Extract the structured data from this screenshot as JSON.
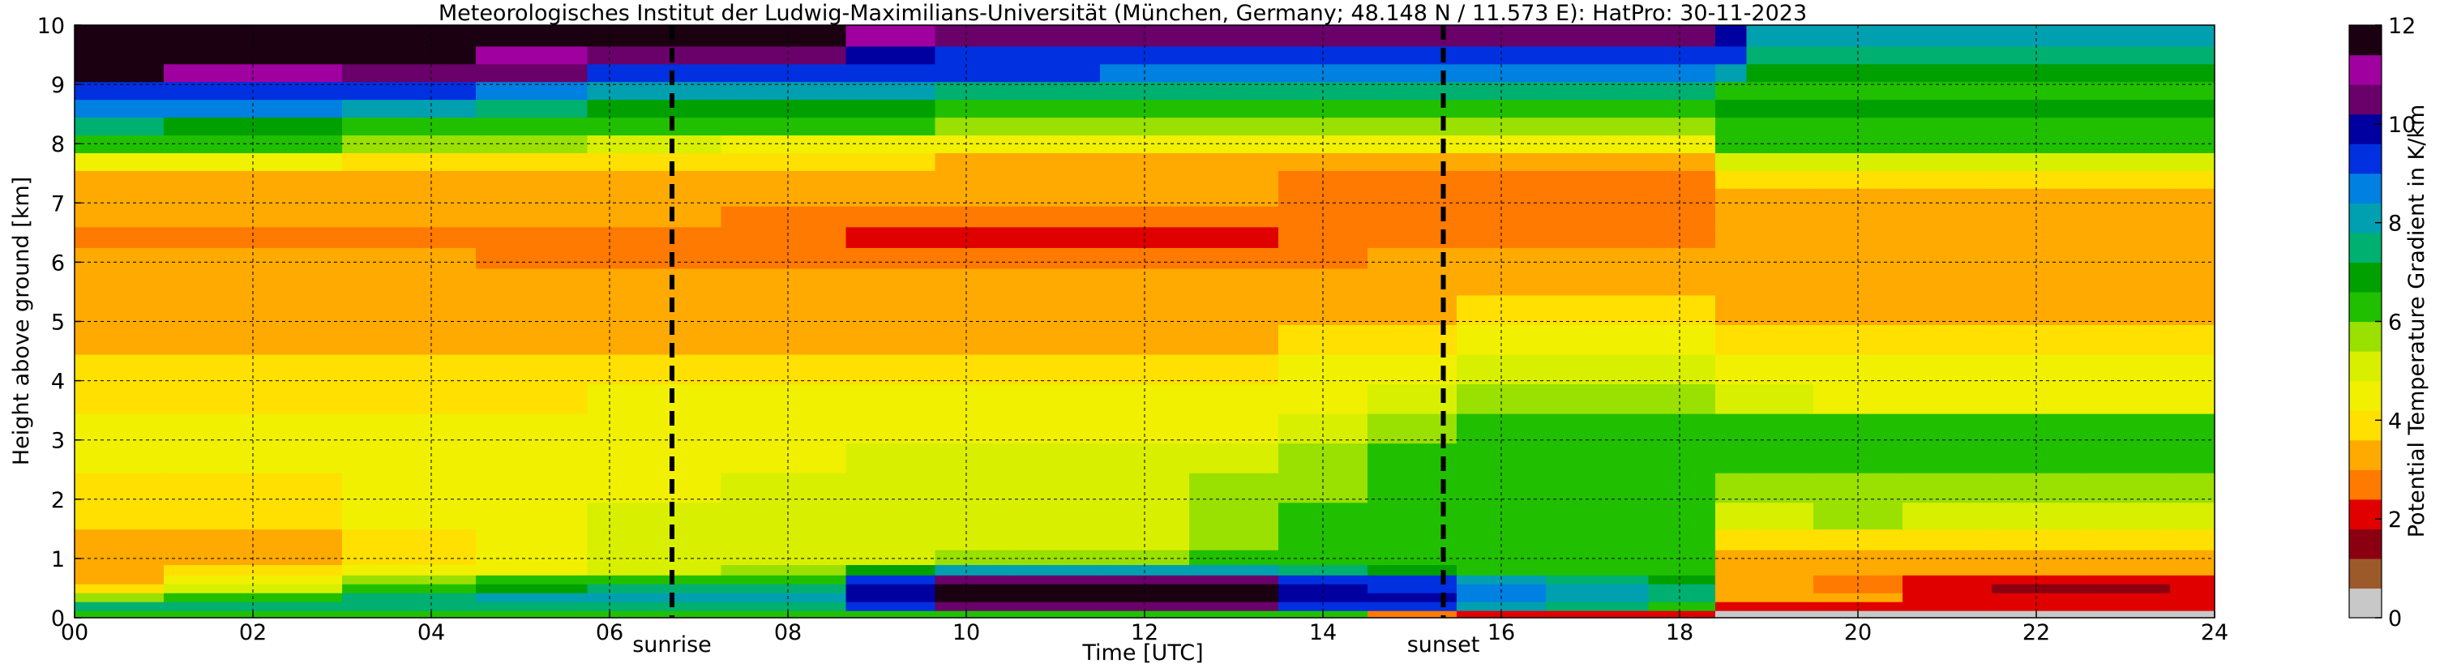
{
  "chart_data": {
    "type": "heatmap",
    "title": "Meteorologisches Institut der Ludwig-Maximilians-Universität (München, Germany; 48.148 N / 11.573 E):    HatPro: 30-11-2023",
    "xlabel": "Time [UTC]",
    "ylabel": "Height above ground [km]",
    "xlim": [
      0,
      24
    ],
    "ylim": [
      0,
      10
    ],
    "x_ticks": [
      "00",
      "02",
      "04",
      "06",
      "08",
      "10",
      "12",
      "14",
      "16",
      "18",
      "20",
      "22",
      "24"
    ],
    "y_ticks": [
      "0",
      "1",
      "2",
      "3",
      "4",
      "5",
      "6",
      "7",
      "8",
      "9",
      "10"
    ],
    "grid": true,
    "colorbar": {
      "label": "Potential Temperature Gradient in K/km",
      "range": [
        0,
        12
      ],
      "ticks": [
        "0",
        "2",
        "4",
        "6",
        "8",
        "10",
        "12"
      ],
      "colors": [
        "#c8c8c8",
        "#9c5a2a",
        "#8b0010",
        "#e00000",
        "#ff7a00",
        "#ffaa00",
        "#ffe000",
        "#f0f000",
        "#d8f000",
        "#9ae000",
        "#20c000",
        "#00a000",
        "#00b070",
        "#00a0b0",
        "#0080e0",
        "#0030e0",
        "#0000a0",
        "#6a006a",
        "#a000a0",
        "#1a0010"
      ]
    },
    "markers": [
      {
        "label": "sunrise",
        "time": 6.7
      },
      {
        "label": "sunset",
        "time": 15.35
      }
    ],
    "time_hours": [
      0,
      2,
      4,
      5,
      6.5,
      8,
      9.3,
      10,
      11,
      12,
      13,
      14,
      15,
      16,
      17,
      18.3,
      18.5,
      19,
      20,
      21,
      22,
      23,
      24
    ],
    "height_km": [
      0.05,
      0.2,
      0.35,
      0.5,
      0.65,
      0.8,
      1.0,
      1.3,
      1.7,
      2.2,
      2.7,
      3.2,
      3.7,
      4.2,
      4.7,
      5.2,
      5.7,
      6.1,
      6.4,
      6.8,
      7.1,
      7.4,
      7.7,
      8.0,
      8.3,
      8.6,
      8.9,
      9.2,
      9.5,
      9.8
    ],
    "values": [
      [
        6.5,
        6.5,
        6.5,
        6.5,
        6.5,
        6.5,
        6.5,
        6.5,
        6.5,
        6.5,
        6.5,
        6.5,
        2.5,
        2.0,
        2.0,
        2.0,
        0.5,
        0.5,
        0.5,
        0.5,
        0.5,
        0.5,
        0.5
      ],
      [
        7.5,
        7.5,
        7.5,
        7.5,
        7.5,
        7.5,
        9.0,
        10.5,
        10.5,
        10.5,
        10.5,
        9.5,
        9.5,
        8.0,
        7.5,
        6.5,
        2.0,
        2.0,
        2.0,
        2.0,
        2.0,
        2.0,
        2.0
      ],
      [
        5.5,
        6.5,
        7.5,
        8.0,
        8.0,
        8.0,
        10.0,
        12.0,
        12.0,
        12.0,
        12.0,
        10.0,
        10.0,
        8.5,
        8.0,
        7.5,
        3.5,
        3.5,
        3.0,
        2.0,
        1.8,
        1.8,
        1.8
      ],
      [
        3.8,
        5.0,
        6.0,
        7.0,
        7.5,
        7.5,
        10.0,
        12.0,
        12.0,
        12.0,
        12.0,
        10.0,
        9.5,
        8.5,
        8.0,
        7.5,
        3.5,
        3.0,
        2.8,
        1.8,
        1.6,
        1.6,
        1.8
      ],
      [
        3.5,
        4.5,
        5.5,
        6.0,
        6.5,
        6.5,
        9.0,
        10.5,
        10.5,
        10.5,
        10.5,
        9.5,
        9.0,
        8.0,
        7.5,
        7.0,
        3.2,
        3.0,
        2.8,
        2.2,
        2.0,
        2.0,
        2.0
      ],
      [
        3.5,
        3.8,
        4.2,
        4.5,
        5.0,
        5.5,
        7.0,
        8.0,
        8.0,
        8.0,
        8.0,
        7.5,
        7.0,
        6.5,
        6.5,
        6.0,
        3.0,
        3.0,
        3.0,
        3.0,
        3.0,
        3.0,
        3.0
      ],
      [
        3.5,
        3.5,
        4.0,
        4.5,
        5.0,
        5.0,
        5.0,
        5.5,
        5.5,
        5.5,
        6.0,
        6.5,
        6.5,
        6.0,
        6.0,
        6.0,
        3.2,
        3.2,
        3.2,
        3.2,
        3.2,
        3.2,
        3.2
      ],
      [
        3.5,
        3.5,
        4.0,
        4.5,
        5.0,
        5.0,
        5.0,
        5.0,
        5.0,
        5.0,
        5.5,
        6.0,
        6.5,
        6.5,
        6.5,
        6.5,
        4.0,
        4.0,
        4.0,
        3.8,
        3.8,
        3.8,
        3.8
      ],
      [
        3.8,
        3.8,
        4.2,
        4.5,
        5.0,
        5.0,
        5.0,
        5.0,
        5.0,
        5.0,
        5.5,
        6.0,
        6.5,
        6.5,
        6.5,
        6.5,
        5.0,
        5.0,
        5.5,
        5.0,
        5.0,
        5.0,
        5.0
      ],
      [
        4.0,
        4.0,
        4.5,
        4.5,
        4.8,
        5.0,
        5.0,
        5.0,
        5.0,
        5.0,
        5.5,
        5.5,
        6.0,
        6.5,
        6.5,
        6.5,
        5.5,
        5.5,
        5.5,
        5.5,
        5.5,
        5.5,
        5.5
      ],
      [
        4.2,
        4.2,
        4.5,
        4.5,
        4.8,
        4.8,
        5.0,
        5.0,
        5.0,
        5.0,
        5.0,
        5.5,
        6.0,
        6.5,
        6.5,
        6.5,
        6.0,
        6.0,
        6.0,
        6.0,
        6.0,
        6.0,
        6.0
      ],
      [
        4.2,
        4.2,
        4.2,
        4.5,
        4.5,
        4.5,
        4.5,
        4.5,
        4.5,
        4.5,
        4.5,
        5.0,
        5.5,
        6.0,
        6.0,
        6.0,
        6.0,
        6.0,
        6.0,
        6.0,
        6.0,
        6.0,
        6.0
      ],
      [
        4.0,
        4.0,
        4.0,
        4.0,
        4.2,
        4.2,
        4.2,
        4.2,
        4.2,
        4.2,
        4.2,
        4.5,
        5.0,
        5.5,
        5.5,
        5.5,
        5.0,
        5.0,
        4.5,
        4.5,
        4.5,
        4.5,
        4.5
      ],
      [
        3.8,
        3.8,
        3.8,
        3.8,
        4.0,
        4.0,
        4.0,
        4.0,
        4.0,
        4.0,
        4.0,
        4.2,
        4.8,
        5.0,
        5.0,
        5.0,
        4.5,
        4.5,
        4.5,
        4.5,
        4.5,
        4.5,
        4.5
      ],
      [
        3.5,
        3.5,
        3.5,
        3.5,
        3.5,
        3.5,
        3.5,
        3.5,
        3.5,
        3.5,
        3.5,
        3.8,
        4.0,
        4.5,
        4.5,
        4.5,
        4.0,
        4.0,
        4.0,
        4.0,
        4.0,
        4.0,
        4.0
      ],
      [
        3.2,
        3.2,
        3.2,
        3.2,
        3.2,
        3.2,
        3.2,
        3.2,
        3.2,
        3.2,
        3.2,
        3.5,
        3.5,
        3.8,
        3.8,
        3.8,
        3.5,
        3.5,
        3.5,
        3.5,
        3.5,
        3.5,
        3.5
      ],
      [
        3.0,
        3.0,
        3.0,
        3.0,
        3.0,
        3.0,
        3.0,
        3.0,
        3.0,
        3.0,
        3.0,
        3.0,
        3.2,
        3.2,
        3.2,
        3.2,
        3.2,
        3.2,
        3.2,
        3.2,
        3.2,
        3.2,
        3.2
      ],
      [
        3.0,
        3.0,
        3.0,
        2.8,
        2.8,
        2.8,
        2.8,
        2.8,
        2.8,
        2.8,
        2.8,
        2.8,
        3.0,
        3.0,
        3.0,
        3.0,
        3.0,
        3.0,
        3.0,
        3.0,
        3.0,
        3.0,
        3.0
      ],
      [
        2.8,
        2.8,
        2.8,
        2.8,
        2.8,
        2.5,
        2.4,
        2.3,
        2.3,
        2.3,
        2.4,
        2.5,
        2.8,
        2.8,
        2.8,
        2.8,
        3.0,
        3.0,
        3.0,
        3.0,
        3.0,
        3.0,
        3.0
      ],
      [
        3.0,
        3.0,
        3.0,
        3.0,
        3.0,
        2.8,
        2.8,
        2.8,
        2.8,
        2.8,
        2.8,
        2.8,
        2.6,
        2.6,
        2.6,
        2.6,
        3.2,
        3.2,
        3.2,
        3.2,
        3.2,
        3.2,
        3.2
      ],
      [
        3.2,
        3.2,
        3.2,
        3.2,
        3.2,
        3.0,
        3.0,
        3.0,
        3.0,
        3.0,
        3.0,
        2.8,
        2.6,
        2.6,
        2.6,
        2.6,
        3.5,
        3.5,
        3.5,
        3.5,
        3.5,
        3.5,
        3.5
      ],
      [
        3.5,
        3.5,
        3.5,
        3.5,
        3.5,
        3.2,
        3.2,
        3.2,
        3.2,
        3.2,
        3.0,
        2.8,
        2.6,
        2.6,
        2.6,
        2.6,
        3.8,
        3.8,
        3.8,
        3.8,
        3.8,
        3.8,
        3.8
      ],
      [
        4.5,
        4.5,
        4.0,
        4.0,
        4.0,
        3.8,
        3.8,
        3.5,
        3.5,
        3.5,
        3.5,
        3.5,
        3.2,
        3.2,
        3.2,
        3.2,
        5.0,
        5.0,
        5.0,
        5.0,
        5.0,
        5.0,
        5.0
      ],
      [
        6.0,
        6.0,
        5.5,
        5.5,
        5.0,
        4.8,
        4.8,
        4.5,
        4.5,
        4.5,
        4.5,
        4.5,
        4.5,
        4.5,
        4.5,
        4.5,
        6.0,
        6.0,
        6.0,
        6.0,
        6.0,
        6.0,
        6.0
      ],
      [
        7.5,
        7.0,
        6.5,
        6.0,
        6.0,
        6.0,
        6.0,
        5.5,
        5.5,
        5.5,
        5.5,
        5.5,
        5.5,
        5.5,
        5.5,
        5.5,
        6.5,
        6.5,
        6.5,
        6.5,
        6.5,
        6.5,
        6.5
      ],
      [
        8.5,
        8.5,
        8.0,
        7.5,
        7.0,
        7.0,
        7.0,
        6.5,
        6.5,
        6.5,
        6.5,
        6.5,
        6.5,
        6.5,
        6.5,
        6.5,
        7.0,
        7.0,
        7.0,
        7.0,
        7.0,
        7.0,
        7.0
      ],
      [
        9.5,
        9.5,
        9.0,
        8.5,
        8.0,
        8.0,
        8.0,
        7.5,
        7.5,
        7.5,
        7.5,
        7.5,
        7.5,
        7.5,
        7.5,
        7.5,
        6.5,
        6.5,
        6.5,
        6.5,
        6.5,
        6.5,
        6.5
      ],
      [
        12.0,
        11.0,
        10.5,
        10.5,
        9.5,
        9.5,
        9.0,
        9.0,
        9.0,
        8.5,
        8.5,
        8.5,
        8.5,
        8.5,
        8.5,
        8.5,
        8.0,
        7.0,
        7.0,
        7.0,
        7.0,
        7.0,
        7.0
      ],
      [
        12.0,
        12.0,
        11.5,
        11.0,
        10.5,
        10.5,
        10.0,
        9.5,
        9.5,
        9.5,
        9.5,
        9.5,
        9.5,
        9.5,
        9.5,
        9.5,
        9.0,
        7.5,
        7.5,
        7.5,
        7.5,
        7.5,
        7.5
      ],
      [
        12.0,
        12.0,
        12.0,
        12.0,
        11.5,
        11.5,
        11.0,
        10.5,
        10.5,
        10.5,
        10.5,
        10.5,
        10.5,
        10.5,
        10.5,
        10.5,
        10.0,
        8.0,
        8.0,
        8.0,
        8.0,
        8.0,
        8.0
      ]
    ]
  }
}
